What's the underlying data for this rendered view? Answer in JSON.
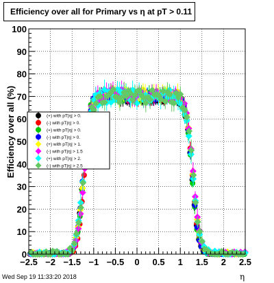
{
  "footer": {
    "timestamp": "Wed Sep 19 11:33:20 2018"
  },
  "colors": {
    "axis": "#000000",
    "grid": "#000000",
    "series": [
      "#000000",
      "#ff0000",
      "#00c800",
      "#0000ff",
      "#ffff00",
      "#ff00ff",
      "#00ffff",
      "#64c864"
    ]
  },
  "chart_data": {
    "type": "scatter",
    "title": "Efficiency over all for Primary vs    η at pT > 0.11",
    "xlabel": "η",
    "ylabel": "Efficiency over all (%)",
    "xlim": [
      -2.5,
      2.5
    ],
    "ylim": [
      0,
      100
    ],
    "x_ticks": [
      -2.5,
      -2,
      -1.5,
      -1,
      -0.5,
      0,
      0.5,
      1,
      1.5,
      2,
      2.5
    ],
    "x_tick_labels": [
      "−2.5",
      "−2",
      "−1.5",
      "−1",
      "−0.5",
      "0",
      "0.5",
      "1",
      "1.5",
      "2",
      "2.5"
    ],
    "y_ticks": [
      0,
      10,
      20,
      30,
      40,
      50,
      60,
      70,
      80,
      90,
      100
    ],
    "y_tick_labels": [
      "0",
      "10",
      "20",
      "30",
      "40",
      "50",
      "60",
      "70",
      "80",
      "90",
      "100"
    ],
    "grid": true,
    "legend_position": "left, mid-height",
    "error_bars": true,
    "bin_width": 0.05,
    "series": [
      {
        "name": "(+) with pT|η| > 0.",
        "color": "#000000",
        "marker": "circle",
        "profile": {
          "plateau": 69,
          "edge_low": -1.25,
          "edge_high": 1.27,
          "width": 0.07,
          "jitter": 1.5
        }
      },
      {
        "name": "(-) with pT|η| > 0.",
        "color": "#ff0000",
        "marker": "circle",
        "profile": {
          "plateau": 70,
          "edge_low": -1.22,
          "edge_high": 1.28,
          "width": 0.07,
          "jitter": 1.8
        }
      },
      {
        "name": "(+) with pT|η| > 0.",
        "color": "#00c800",
        "marker": "circle",
        "profile": {
          "plateau": 70,
          "edge_low": -1.24,
          "edge_high": 1.27,
          "width": 0.07,
          "jitter": 1.8
        }
      },
      {
        "name": "(-) with pT|η| > 0.",
        "color": "#0000ff",
        "marker": "circle",
        "profile": {
          "plateau": 70,
          "edge_low": -1.25,
          "edge_high": 1.28,
          "width": 0.07,
          "jitter": 1.6
        }
      },
      {
        "name": "(+) with pT|η| > 1.",
        "color": "#ffff00",
        "marker": "diamond",
        "profile": {
          "plateau": 71,
          "edge_low": -1.23,
          "edge_high": 1.29,
          "width": 0.08,
          "jitter": 2.6
        }
      },
      {
        "name": "(-) with pT|η| > 1.5",
        "color": "#ff00ff",
        "marker": "diamond",
        "profile": {
          "plateau": 71,
          "edge_low": -1.22,
          "edge_high": 1.3,
          "width": 0.08,
          "jitter": 2.6
        }
      },
      {
        "name": "(+) with pT|η| > 2.",
        "color": "#00ffff",
        "marker": "diamond",
        "profile": {
          "plateau": 70,
          "edge_low": -1.24,
          "edge_high": 1.29,
          "width": 0.08,
          "jitter": 3.2
        }
      },
      {
        "name": "(-) with pT|η| > 2.5",
        "color": "#64c864",
        "marker": "diamond",
        "profile": {
          "plateau": 70,
          "edge_low": -1.23,
          "edge_high": 1.3,
          "width": 0.08,
          "jitter": 3.4
        }
      }
    ]
  }
}
